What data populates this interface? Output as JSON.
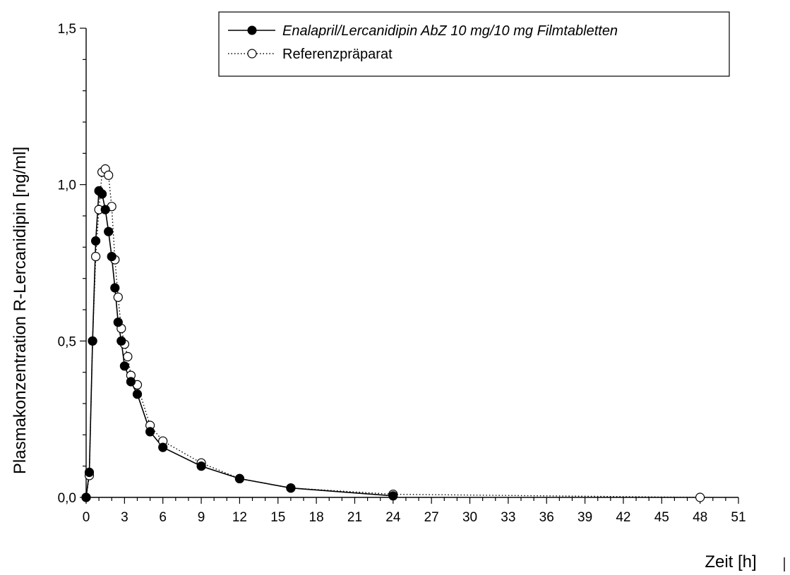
{
  "chart_data": {
    "type": "line",
    "xlabel": "Zeit [h]",
    "ylabel": "Plasmakonzentration R-Lercanidipin [ng/ml]",
    "xlim": [
      0,
      51
    ],
    "ylim": [
      0,
      1.5
    ],
    "x_ticks": [
      "0",
      "3",
      "6",
      "9",
      "12",
      "15",
      "18",
      "21",
      "24",
      "27",
      "30",
      "33",
      "36",
      "39",
      "42",
      "45",
      "48",
      "51"
    ],
    "y_ticks": [
      "0,0",
      "0,5",
      "1,0",
      "1,5"
    ],
    "grid": false,
    "legend_position": "top-right",
    "series": [
      {
        "name": "Enalapril/Lercanidipin AbZ 10 mg/10 mg Filmtabletten",
        "marker": "filled-circle",
        "line": "solid",
        "color": "#000000",
        "x": [
          0,
          0.25,
          0.5,
          0.75,
          1.0,
          1.25,
          1.5,
          1.75,
          2.0,
          2.25,
          2.5,
          2.75,
          3.0,
          3.5,
          4.0,
          5.0,
          6.0,
          9.0,
          12.0,
          16.0,
          24.0
        ],
        "y": [
          0,
          0.08,
          0.5,
          0.82,
          0.98,
          0.97,
          0.92,
          0.85,
          0.77,
          0.67,
          0.56,
          0.5,
          0.42,
          0.37,
          0.33,
          0.21,
          0.16,
          0.1,
          0.06,
          0.03,
          0.005
        ]
      },
      {
        "name": "Referenzpräparat",
        "marker": "open-circle",
        "line": "dotted",
        "color": "#000000",
        "x": [
          0,
          0.25,
          0.5,
          0.75,
          1.0,
          1.25,
          1.5,
          1.75,
          2.0,
          2.25,
          2.5,
          2.75,
          3.0,
          3.25,
          3.5,
          4.0,
          5.0,
          6.0,
          9.0,
          12.0,
          16.0,
          24.0,
          48.0
        ],
        "y": [
          0,
          0.07,
          0.5,
          0.77,
          0.92,
          1.04,
          1.05,
          1.03,
          0.93,
          0.76,
          0.64,
          0.54,
          0.49,
          0.45,
          0.39,
          0.36,
          0.23,
          0.18,
          0.11,
          0.06,
          0.03,
          0.01,
          0.0
        ]
      }
    ]
  }
}
